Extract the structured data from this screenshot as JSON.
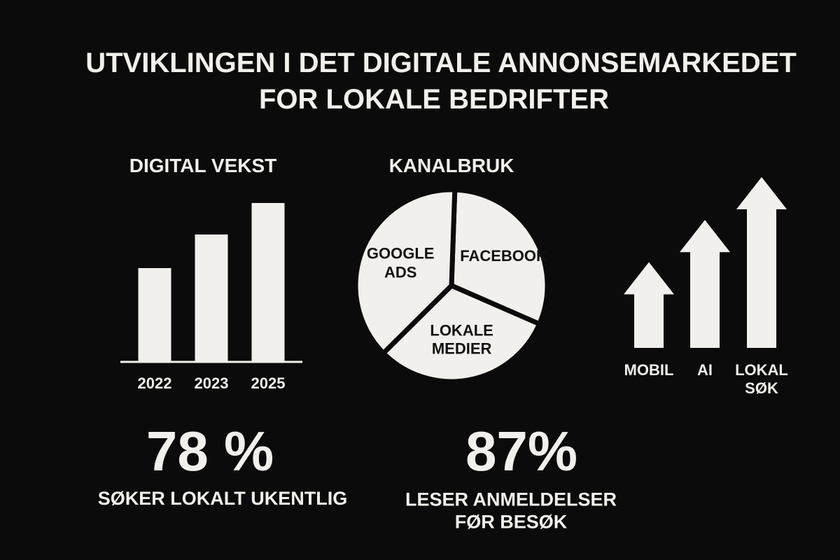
{
  "title": [
    "UTVIKLINGEN I DET DIGITALE ANNONSEMARKEDET",
    "FOR LOKALE BEDRIFTER"
  ],
  "chart_data": [
    {
      "type": "bar",
      "title": "DIGITAL VEKST",
      "categories": [
        "2022",
        "2023",
        "2025"
      ],
      "values": [
        134,
        182,
        227
      ],
      "ylim": [
        0,
        250
      ],
      "color": "#f2f0ec"
    },
    {
      "type": "pie",
      "title": "KANALBRUK",
      "categories": [
        "FACEBOOK",
        "LOKALE MEDIER",
        "GOOGLE ADS"
      ],
      "values": [
        31,
        31,
        38
      ],
      "color": "#f2f0ec"
    },
    {
      "type": "arrows",
      "categories": [
        "MOBIL",
        "AI",
        "LOKAL SØK"
      ],
      "values": [
        124,
        185,
        247
      ],
      "ylim": [
        0,
        250
      ],
      "color": "#f2f0ec"
    }
  ],
  "stats": [
    {
      "value": "78 %",
      "label": "SØKER LOKALT UKENTLIG"
    },
    {
      "value": "87%",
      "label": "LESER ANMELDELSER FØR BESØK"
    }
  ]
}
